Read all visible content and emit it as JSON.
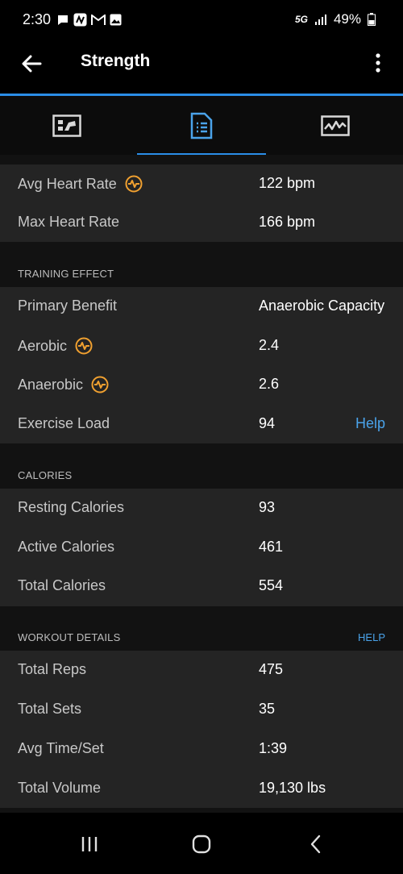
{
  "status_bar": {
    "time": "2:30",
    "network": "5G",
    "battery": "49%"
  },
  "app_bar": {
    "title": "Strength"
  },
  "tabs": [
    {
      "icon": "summary-icon"
    },
    {
      "icon": "details-icon",
      "active": true
    },
    {
      "icon": "chart-icon"
    }
  ],
  "heart_rate": {
    "rows": [
      {
        "label": "Avg Heart Rate",
        "value": "122 bpm"
      },
      {
        "label": "Max Heart Rate",
        "value": "166 bpm"
      }
    ]
  },
  "training_effect": {
    "header": "TRAINING EFFECT",
    "rows": [
      {
        "label": "Primary Benefit",
        "value": "Anaerobic Capacity"
      },
      {
        "label": "Aerobic",
        "value": "2.4"
      },
      {
        "label": "Anaerobic",
        "value": "2.6"
      },
      {
        "label": "Exercise Load",
        "value": "94",
        "action": "Help"
      }
    ]
  },
  "calories": {
    "header": "CALORIES",
    "rows": [
      {
        "label": "Resting Calories",
        "value": "93"
      },
      {
        "label": "Active Calories",
        "value": "461"
      },
      {
        "label": "Total Calories",
        "value": "554"
      }
    ]
  },
  "workout_details": {
    "header": "WORKOUT DETAILS",
    "help": "HELP",
    "rows": [
      {
        "label": "Total Reps",
        "value": "475"
      },
      {
        "label": "Total Sets",
        "value": "35"
      },
      {
        "label": "Avg Time/Set",
        "value": "1:39"
      },
      {
        "label": "Total Volume",
        "value": "19,130 lbs"
      }
    ]
  },
  "colors": {
    "accent": "#2b8ee8",
    "link": "#4aa3ea",
    "training_effect_icon": "#f0a030",
    "section_bg": "#242424",
    "page_bg": "#121212"
  }
}
